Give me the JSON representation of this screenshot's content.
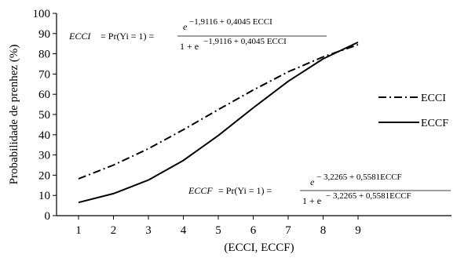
{
  "chart_data": {
    "type": "line",
    "xlabel": "(ECCI, ECCF)",
    "ylabel": "Probabilidade de prenhez (%)",
    "x": [
      1,
      2,
      3,
      4,
      5,
      6,
      7,
      8,
      9
    ],
    "xlim": [
      0.5,
      9.5
    ],
    "ylim": [
      0,
      100
    ],
    "yticks": [
      0,
      10,
      20,
      30,
      40,
      50,
      60,
      70,
      80,
      90,
      100
    ],
    "grid": false,
    "legend": "right",
    "series": [
      {
        "name": "ECCI",
        "style": "dash-dot",
        "color": "#000000",
        "values": [
          18.2,
          25.0,
          33.1,
          42.5,
          52.4,
          62.1,
          71.1,
          78.5,
          84.5
        ]
      },
      {
        "name": "ECCF",
        "style": "solid",
        "color": "#000000",
        "values": [
          6.5,
          10.9,
          17.6,
          27.3,
          39.6,
          53.3,
          66.4,
          77.5,
          85.7
        ]
      }
    ],
    "annotations": [
      {
        "id": "eq_ecci",
        "lhs": "ECCI",
        "prob": "= Pr(Yi = 1) =",
        "base": "e",
        "exponent": "−1,9116 + 0,4045 ECCI",
        "den_prefix": "1 + e",
        "den_exponent": "−1,9116 + 0,4045 ECCI"
      },
      {
        "id": "eq_eccf",
        "lhs": "ECCF",
        "prob": "= Pr(Yi = 1) =",
        "base": "e",
        "exponent": "− 3,2265 + 0,5581ECCF",
        "den_prefix": "1 + e",
        "den_exponent": "− 3,2265 + 0,5581ECCF"
      }
    ]
  }
}
